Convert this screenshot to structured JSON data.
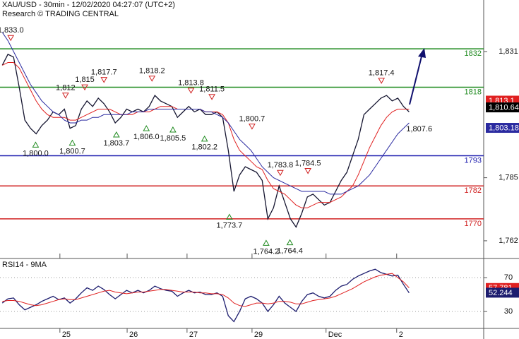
{
  "chart_data": [
    {
      "type": "line",
      "title": "XAU/USD - 30min - 12/02/2020 04:27:07 (UTC+2)",
      "subtitle": "Research © TRADING CENTRAL",
      "x": [
        0,
        1,
        2,
        3,
        4,
        5,
        6,
        7,
        8,
        9,
        10,
        11,
        12,
        13,
        14,
        15,
        16,
        17,
        18,
        19,
        20,
        21,
        22,
        23,
        24,
        25,
        26,
        27,
        28,
        29,
        30,
        31,
        32,
        33,
        34,
        35,
        36,
        37,
        38,
        39,
        40,
        41,
        42,
        43,
        44,
        45,
        46,
        47,
        48,
        49,
        50,
        51,
        52,
        53,
        54,
        55,
        56,
        57,
        58,
        59,
        60,
        61,
        62,
        63,
        64,
        65,
        66,
        67,
        68,
        69,
        70,
        71,
        72
      ],
      "xlim": [
        -0.4,
        85.2
      ],
      "ylim": [
        1755.8,
        1849.8
      ],
      "yticks": [
        {
          "value": 1831,
          "label": "1,831"
        },
        {
          "value": 1785,
          "label": "1,785"
        },
        {
          "value": 1762,
          "label": "1,762"
        }
      ],
      "series": [
        {
          "color": "#151530",
          "values": [
            1826,
            1830,
            1829,
            1818,
            1806,
            1803,
            1801,
            1804,
            1806,
            1809,
            1808,
            1810,
            1803,
            1804,
            1810,
            1813,
            1811,
            1814,
            1812,
            1809,
            1805,
            1807,
            1810,
            1809,
            1810,
            1809,
            1811,
            1815,
            1813,
            1812,
            1811,
            1807,
            1809,
            1811,
            1809,
            1810,
            1808,
            1808,
            1809,
            1807,
            1795,
            1780,
            1786,
            1789,
            1788,
            1787,
            1784,
            1770,
            1774,
            1782,
            1776,
            1770,
            1767,
            1772,
            1778,
            1779,
            1777,
            1775,
            1776,
            1780,
            1784,
            1787,
            1793,
            1799,
            1808,
            1810,
            1812,
            1814,
            1815,
            1813,
            1814,
            1811,
            1809
          ]
        },
        {
          "color": "#e02020",
          "values": [
            1826,
            1827,
            1827,
            1825,
            1821,
            1817,
            1813,
            1810,
            1808,
            1807,
            1807,
            1807,
            1806,
            1806,
            1807,
            1808,
            1809,
            1810,
            1810,
            1810,
            1809,
            1808,
            1808,
            1808,
            1809,
            1809,
            1809,
            1810,
            1811,
            1811,
            1811,
            1810,
            1810,
            1810,
            1810,
            1810,
            1809,
            1809,
            1809,
            1808,
            1805,
            1799,
            1795,
            1793,
            1791,
            1789,
            1788,
            1784,
            1781,
            1780,
            1779,
            1777,
            1775,
            1774,
            1774,
            1775,
            1776,
            1776,
            1776,
            1777,
            1778,
            1780,
            1782,
            1786,
            1791,
            1796,
            1800,
            1804,
            1807,
            1809,
            1810,
            1810,
            1810
          ]
        },
        {
          "color": "#2a2aa0",
          "values": [
            1838,
            1835,
            1831,
            1827,
            1823,
            1819,
            1816,
            1813,
            1811,
            1809,
            1808,
            1806,
            1805,
            1805,
            1806,
            1806,
            1807,
            1807,
            1808,
            1808,
            1808,
            1808,
            1808,
            1809,
            1809,
            1809,
            1810,
            1810,
            1810,
            1810,
            1810,
            1810,
            1810,
            1810,
            1810,
            1810,
            1809,
            1809,
            1808,
            1807,
            1805,
            1802,
            1799,
            1797,
            1795,
            1792,
            1789,
            1787,
            1785,
            1784,
            1783,
            1782,
            1781,
            1780,
            1780,
            1780,
            1780,
            1780,
            1779,
            1779,
            1779,
            1780,
            1781,
            1782,
            1784,
            1786,
            1789,
            1792,
            1795,
            1798,
            1801,
            1803,
            1805
          ]
        }
      ],
      "levels": [
        {
          "value": 1832,
          "label": "1832",
          "color": "#1f8a1f"
        },
        {
          "value": 1818,
          "label": "1818",
          "color": "#1f8a1f"
        },
        {
          "value": 1793,
          "label": "1793",
          "color": "#2020b0"
        },
        {
          "value": 1782,
          "label": "1782",
          "color": "#d02020"
        },
        {
          "value": 1770,
          "label": "1770",
          "color": "#d02020"
        }
      ],
      "annotations": [
        {
          "x": 1.5,
          "value": 1833.0,
          "label": "1,833.0",
          "kind": "high"
        },
        {
          "x": 5.9,
          "value": 1800.0,
          "label": "1,800.0",
          "kind": "low"
        },
        {
          "x": 11.2,
          "value": 1812,
          "label": "1,812",
          "kind": "high"
        },
        {
          "x": 12.4,
          "value": 1800.7,
          "label": "1,800.7",
          "kind": "low"
        },
        {
          "x": 14.6,
          "value": 1815,
          "label": "1,815",
          "kind": "high"
        },
        {
          "x": 18,
          "value": 1817.7,
          "label": "1,817.7",
          "kind": "high"
        },
        {
          "x": 20.2,
          "value": 1803.7,
          "label": "1,803.7",
          "kind": "low"
        },
        {
          "x": 25.5,
          "value": 1806.0,
          "label": "1,806.0",
          "kind": "low"
        },
        {
          "x": 26.5,
          "value": 1818.2,
          "label": "1,818.2",
          "kind": "high"
        },
        {
          "x": 30.2,
          "value": 1805.5,
          "label": "1,805.5",
          "kind": "low"
        },
        {
          "x": 33.4,
          "value": 1813.8,
          "label": "1,813.8",
          "kind": "high"
        },
        {
          "x": 35.8,
          "value": 1802.2,
          "label": "1,802.2",
          "kind": "low"
        },
        {
          "x": 37.1,
          "value": 1811.5,
          "label": "1,811.5",
          "kind": "high"
        },
        {
          "x": 40.2,
          "value": 1773.7,
          "label": "1,773.7",
          "kind": "low"
        },
        {
          "x": 44.2,
          "value": 1800.7,
          "label": "1,800.7",
          "kind": "high"
        },
        {
          "x": 46.7,
          "value": 1764.2,
          "label": "1,764.2",
          "kind": "low"
        },
        {
          "x": 49.2,
          "value": 1783.8,
          "label": "1,783.8",
          "kind": "high"
        },
        {
          "x": 50.9,
          "value": 1764.4,
          "label": "1,764.4",
          "kind": "low"
        },
        {
          "x": 54.1,
          "value": 1784.5,
          "label": "1,784.5",
          "kind": "high"
        },
        {
          "x": 67.1,
          "value": 1817.4,
          "label": "1,817.4",
          "kind": "high"
        },
        {
          "x": 71.5,
          "value": 1807.6,
          "label": "1,807.6",
          "kind": "text"
        }
      ],
      "price_tags": [
        {
          "value": 1813.1,
          "label": "1,813.1",
          "color": "#e02020"
        },
        {
          "value": 1810.64,
          "label": "1,810.64",
          "color": "#000000"
        },
        {
          "value": 1803.18,
          "label": "1,803.18",
          "color": "#2a2aa0"
        }
      ]
    },
    {
      "type": "line",
      "title": "RSI14 - 9MA",
      "x": [
        0,
        1,
        2,
        3,
        4,
        5,
        6,
        7,
        8,
        9,
        10,
        11,
        12,
        13,
        14,
        15,
        16,
        17,
        18,
        19,
        20,
        21,
        22,
        23,
        24,
        25,
        26,
        27,
        28,
        29,
        30,
        31,
        32,
        33,
        34,
        35,
        36,
        37,
        38,
        39,
        40,
        41,
        42,
        43,
        44,
        45,
        46,
        47,
        48,
        49,
        50,
        51,
        52,
        53,
        54,
        55,
        56,
        57,
        58,
        59,
        60,
        61,
        62,
        63,
        64,
        65,
        66,
        67,
        68,
        69,
        70,
        71,
        72
      ],
      "xlim": [
        -0.4,
        85.2
      ],
      "ylim": [
        10,
        91
      ],
      "yticks": [
        70,
        30
      ],
      "xticks": [
        {
          "value": 10.2,
          "label": "25"
        },
        {
          "value": 22.1,
          "label": "26"
        },
        {
          "value": 32.7,
          "label": "27"
        },
        {
          "value": 44.2,
          "label": "29"
        },
        {
          "value": 57.3,
          "label": "Dec"
        },
        {
          "value": 69.8,
          "label": "2"
        }
      ],
      "series": [
        {
          "color": "#1c1c6e",
          "values": [
            40,
            45,
            46,
            38,
            32,
            35,
            38,
            42,
            45,
            48,
            44,
            46,
            40,
            45,
            52,
            58,
            55,
            60,
            56,
            50,
            45,
            50,
            55,
            52,
            55,
            52,
            55,
            60,
            57,
            55,
            54,
            48,
            52,
            55,
            52,
            53,
            50,
            50,
            52,
            48,
            25,
            18,
            30,
            45,
            48,
            45,
            40,
            30,
            38,
            48,
            40,
            35,
            30,
            42,
            50,
            52,
            48,
            46,
            48,
            55,
            60,
            62,
            68,
            72,
            75,
            78,
            80,
            76,
            74,
            72,
            73,
            62,
            52
          ]
        },
        {
          "color": "#e02020",
          "values": [
            42,
            43,
            43,
            42,
            40,
            38,
            37,
            38,
            40,
            42,
            44,
            45,
            44,
            44,
            46,
            48,
            50,
            52,
            54,
            55,
            53,
            52,
            51,
            52,
            53,
            53,
            54,
            55,
            56,
            56,
            55,
            54,
            53,
            53,
            53,
            52,
            52,
            51,
            51,
            50,
            46,
            40,
            37,
            36,
            38,
            40,
            40,
            39,
            40,
            42,
            42,
            41,
            39,
            39,
            41,
            43,
            44,
            45,
            46,
            48,
            51,
            54,
            57,
            61,
            65,
            68,
            71,
            73,
            74,
            75,
            70,
            65,
            58
          ]
        }
      ],
      "price_tags": [
        {
          "value": 57.781,
          "label": "57.781",
          "color": "#e02020"
        },
        {
          "value": 52.244,
          "label": "52.244",
          "color": "#1c1c6e"
        }
      ]
    }
  ]
}
